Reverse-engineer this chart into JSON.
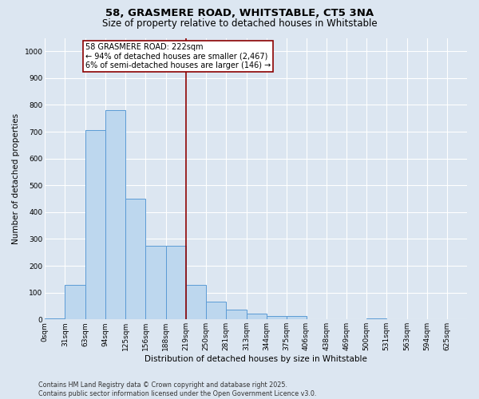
{
  "title1": "58, GRASMERE ROAD, WHITSTABLE, CT5 3NA",
  "title2": "Size of property relative to detached houses in Whitstable",
  "xlabel": "Distribution of detached houses by size in Whitstable",
  "ylabel": "Number of detached properties",
  "footer1": "Contains HM Land Registry data © Crown copyright and database right 2025.",
  "footer2": "Contains public sector information licensed under the Open Government Licence v3.0.",
  "annotation_title": "58 GRASMERE ROAD: 222sqm",
  "annotation_line1": "← 94% of detached houses are smaller (2,467)",
  "annotation_line2": "6% of semi-detached houses are larger (146) →",
  "bar_labels": [
    "0sqm",
    "31sqm",
    "63sqm",
    "94sqm",
    "125sqm",
    "156sqm",
    "188sqm",
    "219sqm",
    "250sqm",
    "281sqm",
    "313sqm",
    "344sqm",
    "375sqm",
    "406sqm",
    "438sqm",
    "469sqm",
    "500sqm",
    "531sqm",
    "563sqm",
    "594sqm",
    "625sqm"
  ],
  "bar_values": [
    5,
    130,
    705,
    780,
    450,
    275,
    275,
    130,
    65,
    37,
    22,
    12,
    12,
    0,
    0,
    0,
    5,
    0,
    0,
    0,
    0
  ],
  "bar_edges": [
    0,
    31,
    63,
    94,
    125,
    156,
    188,
    219,
    250,
    281,
    313,
    344,
    375,
    406,
    438,
    469,
    500,
    531,
    563,
    594,
    625,
    656
  ],
  "bar_color": "#BDD7EE",
  "bar_edge_color": "#5B9BD5",
  "vline_x": 219,
  "vline_color": "#8B0000",
  "annotation_box_color": "#8B0000",
  "bg_color": "#DCE6F1",
  "plot_bg_color": "#DCE6F1",
  "ylim": [
    0,
    1050
  ],
  "yticks": [
    0,
    100,
    200,
    300,
    400,
    500,
    600,
    700,
    800,
    900,
    1000
  ],
  "grid_color": "#ffffff",
  "title_fontsize": 9.5,
  "subtitle_fontsize": 8.5,
  "axis_label_fontsize": 7.5,
  "tick_fontsize": 6.5,
  "annotation_fontsize": 7.0,
  "footer_fontsize": 5.8
}
